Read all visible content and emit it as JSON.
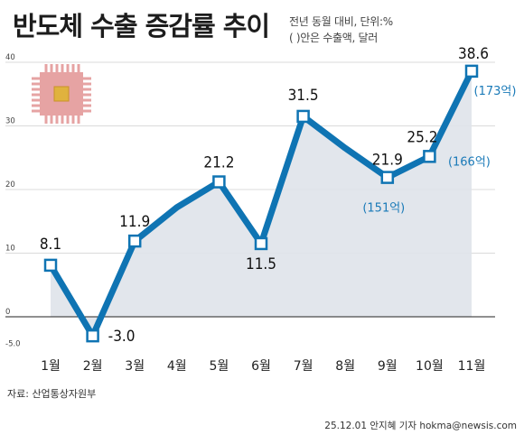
{
  "header": {
    "title": "반도체 수출 증감률 추이",
    "note_line1": "전년 동월 대비, 단위:%",
    "note_line2": "( )안은 수출액, 달러"
  },
  "footer": {
    "source": "자료: 산업통상자원부",
    "credit": "25.12.01 안지혜 기자 hokma@newsis.com"
  },
  "colors": {
    "line": "#0f74b3",
    "area": "#dfe3ea",
    "chip_body": "#e6a3a3",
    "chip_core": "#e0b23e",
    "grid": "#cfcfcf"
  },
  "decoration": {
    "icon": "semiconductor-chip-icon"
  },
  "chart_data": {
    "type": "line",
    "categories": [
      "1월",
      "2월",
      "3월",
      "4월",
      "5월",
      "6월",
      "7월",
      "8월",
      "9월",
      "10월",
      "11월"
    ],
    "values": [
      8.1,
      -3.0,
      11.9,
      17.2,
      21.2,
      11.5,
      31.5,
      26.5,
      21.9,
      25.2,
      38.6
    ],
    "point_labels": [
      "8.1",
      "-3.0",
      "11.9",
      "",
      "21.2",
      "11.5",
      "31.5",
      "",
      "21.9",
      "25.2",
      "38.6"
    ],
    "export_labels": [
      "",
      "",
      "",
      "",
      "",
      "",
      "",
      "",
      "(151억)",
      "(166억)",
      "(173억)"
    ],
    "yticks": [
      "40",
      "30",
      "20",
      "10",
      "0",
      "-5.0"
    ],
    "ylim": [
      -5,
      40
    ],
    "grid": true,
    "marker": "square"
  }
}
